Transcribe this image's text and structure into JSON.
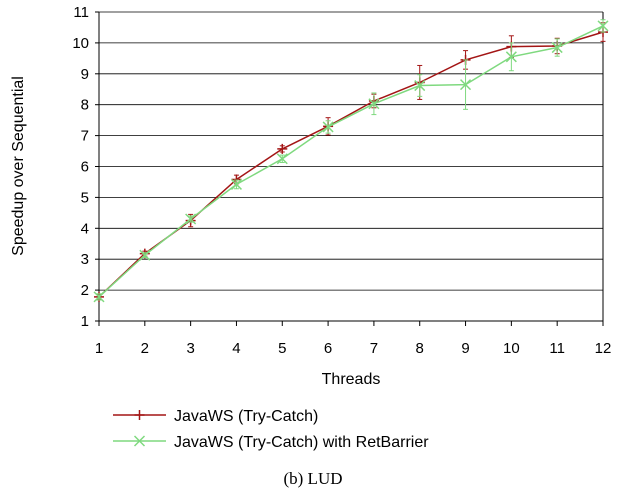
{
  "chart_data": {
    "type": "line",
    "title": "",
    "xlabel": "Threads",
    "ylabel": "Speedup over Sequential",
    "caption": "(b)  LUD",
    "x": [
      1,
      2,
      3,
      4,
      5,
      6,
      7,
      8,
      9,
      10,
      11,
      12
    ],
    "xlim": [
      1,
      12
    ],
    "ylim": [
      1,
      11
    ],
    "yticks": [
      1,
      2,
      3,
      4,
      5,
      6,
      7,
      8,
      9,
      10,
      11
    ],
    "grid": "horizontal",
    "legend_position": "bottom",
    "series": [
      {
        "name": "JavaWS (Try-Catch)",
        "color": "#a31515",
        "marker": "plus",
        "values": [
          1.78,
          3.18,
          4.25,
          5.58,
          6.57,
          7.3,
          8.12,
          8.72,
          9.45,
          9.88,
          9.9,
          10.35
        ],
        "error": [
          0.08,
          0.08,
          0.2,
          0.14,
          0.1,
          0.28,
          0.22,
          0.55,
          0.3,
          0.35,
          0.25,
          0.3
        ]
      },
      {
        "name": "JavaWS (Try-Catch) with RetBarrier",
        "color": "#7fd97f",
        "marker": "x",
        "values": [
          1.78,
          3.13,
          4.3,
          5.42,
          6.25,
          7.28,
          8.03,
          8.62,
          8.65,
          9.55,
          9.85,
          10.55
        ],
        "error": [
          0.1,
          0.08,
          0.1,
          0.14,
          0.12,
          0.2,
          0.35,
          0.35,
          0.8,
          0.45,
          0.28,
          0.2
        ]
      }
    ]
  }
}
